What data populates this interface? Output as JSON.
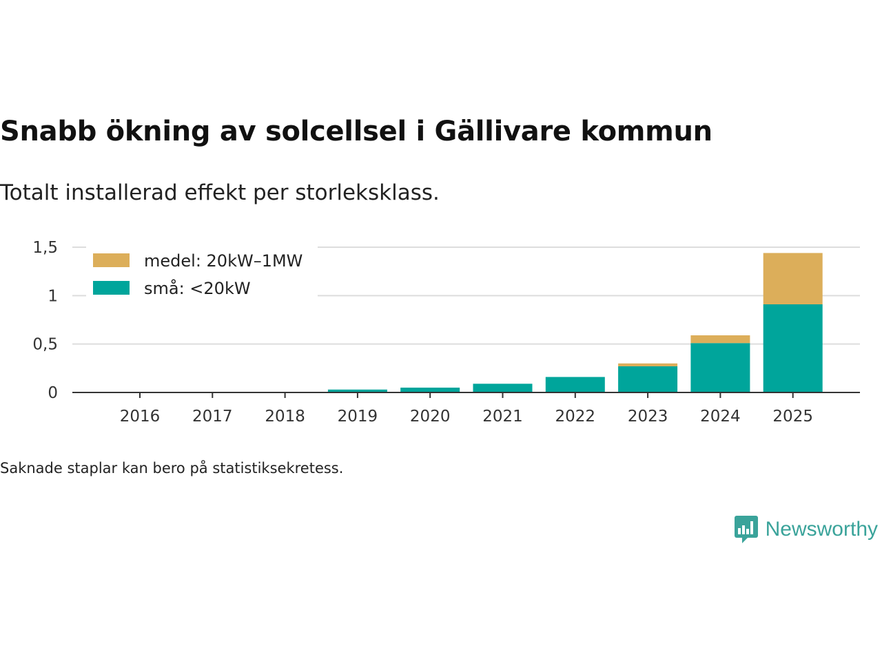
{
  "title": "Snabb ökning av solcellsel i Gällivare kommun",
  "subtitle": "Totalt installerad effekt per storleksklass.",
  "note": "Saknade staplar kan bero på statistiksekretess.",
  "brand": {
    "name": "Newsworthy",
    "icon": "newsworthy-logo-icon",
    "color": "#3aa39a"
  },
  "chart_data": {
    "type": "bar",
    "stacked": true,
    "categories": [
      "2016",
      "2017",
      "2018",
      "2019",
      "2020",
      "2021",
      "2022",
      "2023",
      "2024",
      "2025"
    ],
    "series": [
      {
        "name": "små: <20kW",
        "color": "#00a59b",
        "values": [
          0,
          0,
          0,
          0.03,
          0.05,
          0.09,
          0.16,
          0.27,
          0.51,
          0.91
        ]
      },
      {
        "name": "medel: 20kW–1MW",
        "color": "#dcae5a",
        "values": [
          0,
          0,
          0,
          0,
          0,
          0,
          0,
          0.03,
          0.08,
          0.53
        ]
      }
    ],
    "yticks": [
      0,
      0.5,
      1,
      1.5
    ],
    "ytick_labels": [
      "0",
      "0,5",
      "1",
      "1,5"
    ],
    "ylim": [
      0,
      1.5
    ],
    "legend_position": "top-left",
    "grid": true,
    "xlabel": "",
    "ylabel": ""
  }
}
